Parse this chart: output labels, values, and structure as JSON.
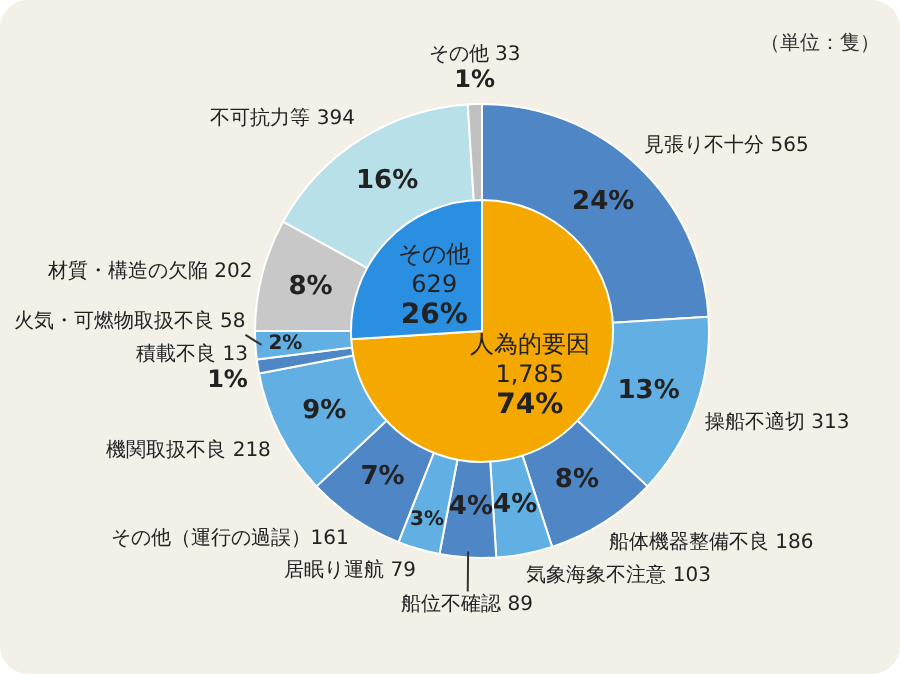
{
  "chart_data": [
    {
      "type": "donut",
      "annotations": [
        "（単位：隻）"
      ],
      "categories": [
        "見張り不十分 565",
        "操船不適切 313",
        "船体機器整備不良 186",
        "気象海象不注意 103",
        "船位不確認 89",
        "居眠り運航 79",
        "その他（運行の過誤）161",
        "機関取扱不良 218",
        "積載不良 13",
        "火気・可燃物取扱不良 58",
        "材質・構造の欠陥 202",
        "不可抗力等 394",
        "その他 33"
      ],
      "values": [
        24,
        13,
        8,
        4,
        4,
        3,
        7,
        9,
        1,
        2,
        8,
        16,
        1
      ],
      "colors": [
        "#4f86c6",
        "#62b0e3",
        "#4f86c6",
        "#62b0e3",
        "#4f86c6",
        "#62b0e3",
        "#4f86c6",
        "#62b0e3",
        "#4f86c6",
        "#62b0e3",
        "#c8c8c8",
        "#b8e0e8",
        "#c0c0c0"
      ],
      "value_labels": [
        "24%",
        "13%",
        "8%",
        "4%",
        "4%",
        "3%",
        "7%",
        "9%",
        "1%",
        "2%",
        "8%",
        "16%",
        "1%"
      ]
    },
    {
      "type": "pie",
      "categories": [
        "人為的要因 1,785",
        "その他 629"
      ],
      "values": [
        74,
        26
      ],
      "colors": [
        "#f5a800",
        "#2a8fe0"
      ],
      "value_labels": [
        "74%",
        "26%"
      ]
    }
  ]
}
